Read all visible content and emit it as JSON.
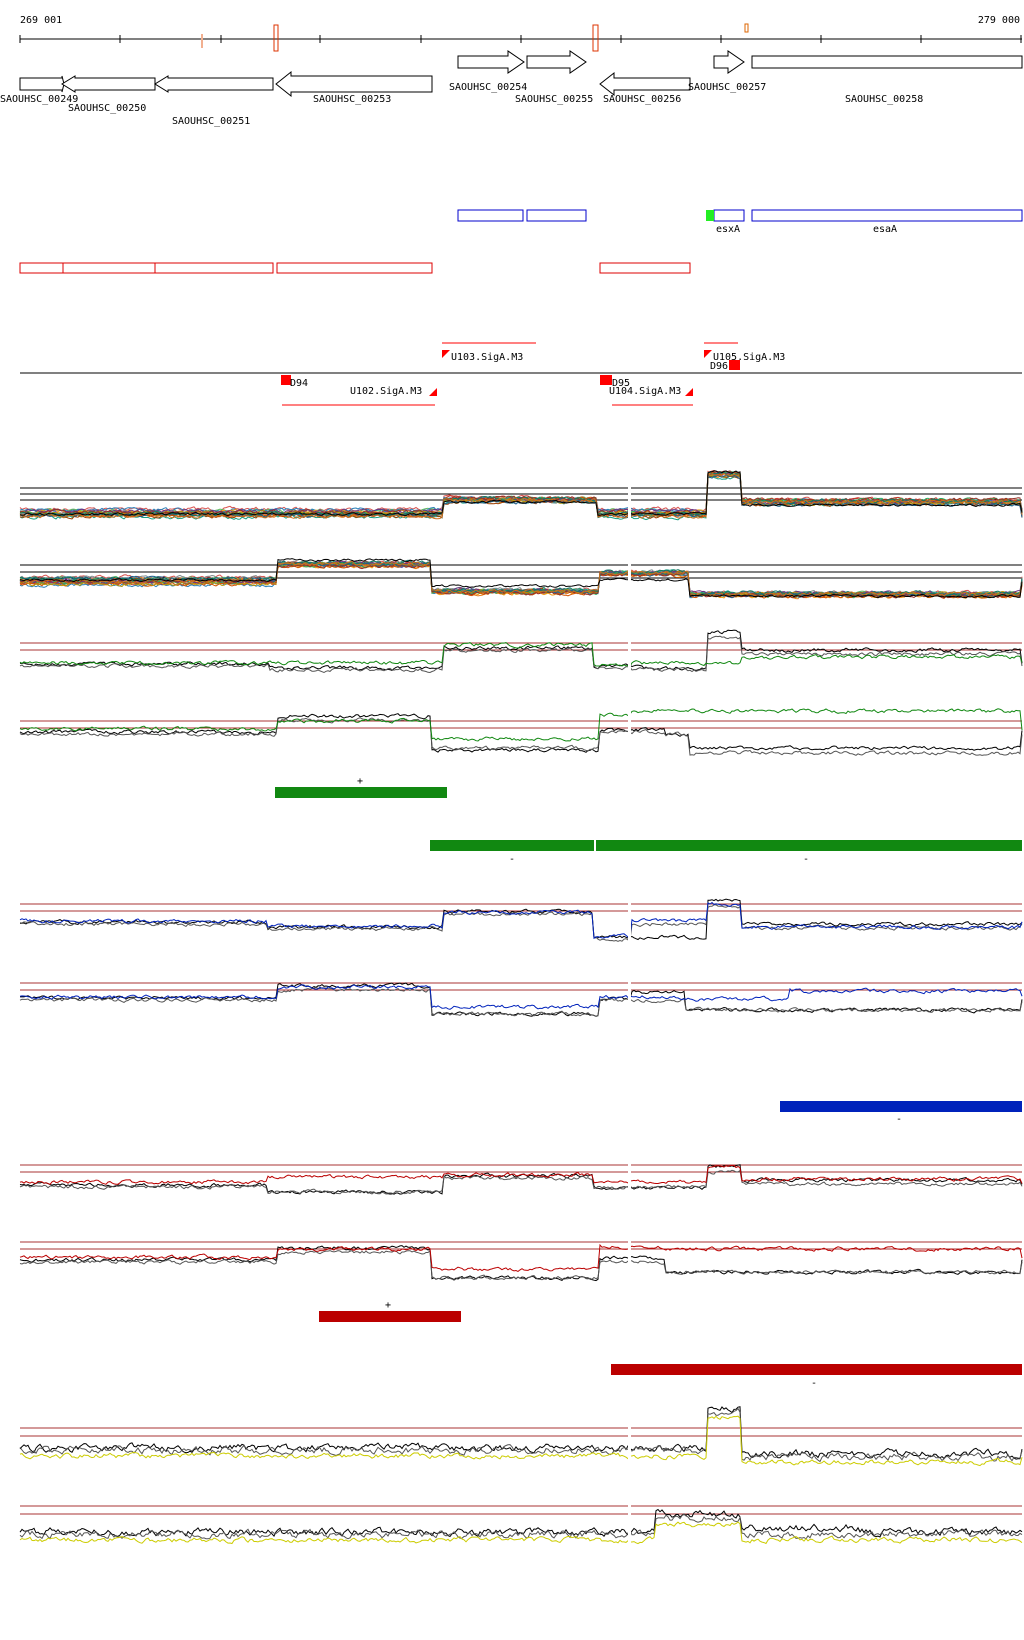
{
  "ruler": {
    "start_label": "269 001",
    "end_label": "279 000"
  },
  "genes": [
    {
      "id": "SAOUHSC_00249",
      "strand": "+"
    },
    {
      "id": "SAOUHSC_00250",
      "strand": "-"
    },
    {
      "id": "SAOUHSC_00251",
      "strand": "-"
    },
    {
      "id": "SAOUHSC_00253",
      "strand": "-"
    },
    {
      "id": "SAOUHSC_00254",
      "strand": "+"
    },
    {
      "id": "SAOUHSC_00255",
      "strand": "+"
    },
    {
      "id": "SAOUHSC_00256",
      "strand": "-"
    },
    {
      "id": "SAOUHSC_00257",
      "strand": "+"
    },
    {
      "id": "SAOUHSC_00258",
      "strand": "+"
    }
  ],
  "blue_features": [
    {
      "label": ""
    },
    {
      "label": ""
    },
    {
      "label": "esxA"
    },
    {
      "label": "esaA"
    }
  ],
  "promoters": [
    {
      "label": "U103.SigA.M3",
      "strand": "+"
    },
    {
      "label": "U105.SigA.M3",
      "strand": "+"
    },
    {
      "label": "D94",
      "strand": "-"
    },
    {
      "label": "U102.SigA.M3",
      "strand": "-"
    },
    {
      "label": "D95",
      "strand": "-"
    },
    {
      "label": "U104.SigA.M3",
      "strand": "-"
    },
    {
      "label": "D96",
      "strand": "-"
    }
  ],
  "segment_markers": {
    "plus": "+",
    "minus": "-"
  },
  "colors": {
    "gene_outline": "#000000",
    "blue_feature": "#0000cc",
    "red_feature": "#dd0000",
    "promoter": "#ff0000",
    "green_track": "#118811",
    "blue_track": "#0022bb",
    "red_track": "#bb0000",
    "yellow_track": "#cccc00",
    "threshold": "#aa3333"
  }
}
